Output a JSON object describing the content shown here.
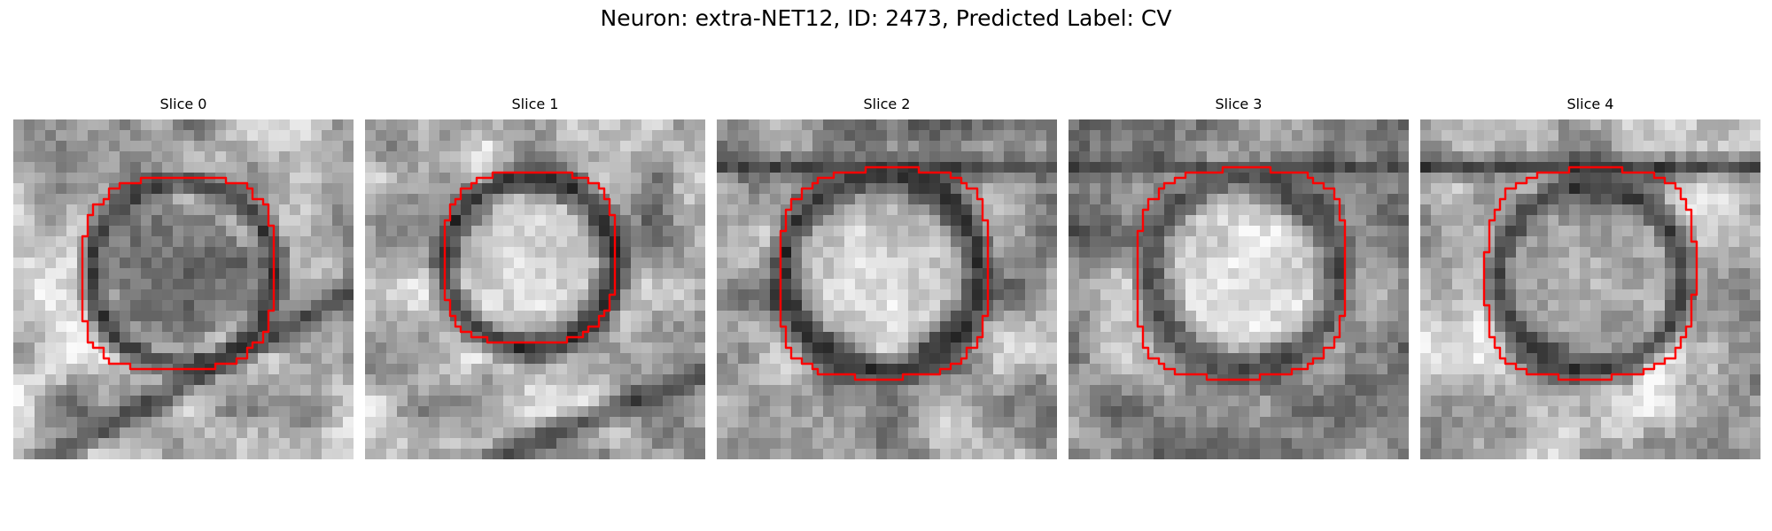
{
  "figure": {
    "title": "Neuron: extra-NET12, ID: 2473, Predicted Label: CV",
    "contour_color": "#ff0000"
  },
  "panels": [
    {
      "title": "Slice 0"
    },
    {
      "title": "Slice 1"
    },
    {
      "title": "Slice 2"
    },
    {
      "title": "Slice 3"
    },
    {
      "title": "Slice 4"
    }
  ]
}
